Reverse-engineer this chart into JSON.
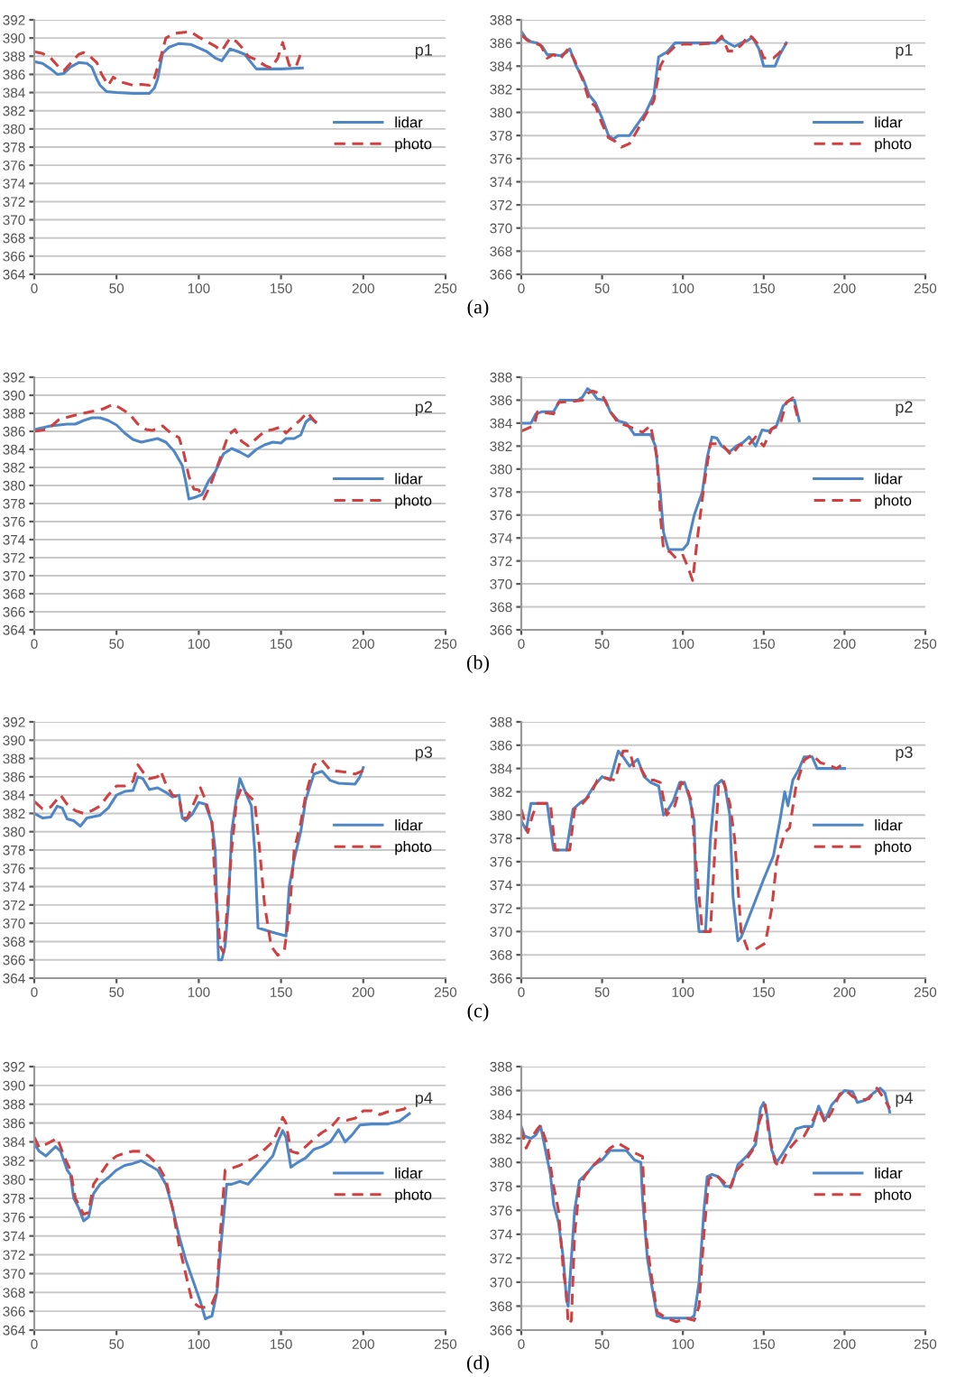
{
  "chart_data": [
    {
      "type": "line",
      "xlim": [
        0,
        250
      ],
      "xticks": [
        0,
        50,
        100,
        150,
        200,
        250
      ],
      "ylim": [
        364,
        392
      ],
      "yticks": [
        364,
        366,
        368,
        370,
        372,
        374,
        376,
        378,
        380,
        382,
        384,
        386,
        388,
        390,
        392
      ],
      "grid": "y",
      "legend": "right",
      "annotations": [
        "p1",
        "(a)"
      ],
      "series": [
        {
          "name": "lidar",
          "color": "#4f86c6",
          "line_style": "solid",
          "x": [
            0,
            5,
            10,
            14,
            18,
            22,
            27,
            32,
            35,
            38,
            40,
            44,
            50,
            60,
            70,
            73,
            75,
            78,
            82,
            88,
            95,
            100,
            105,
            110,
            114,
            119,
            124,
            128,
            131,
            135,
            140,
            150,
            163
          ],
          "values": [
            387.4,
            387.2,
            386.6,
            386,
            386.1,
            386.8,
            387.3,
            387.2,
            386.8,
            385.5,
            384.8,
            384.1,
            384,
            383.9,
            383.9,
            384.5,
            385.5,
            388.3,
            389,
            389.4,
            389.3,
            388.9,
            388.5,
            387.8,
            387.5,
            388.8,
            388.5,
            388.2,
            387.5,
            386.6,
            386.6,
            386.6,
            386.7
          ]
        },
        {
          "name": "photo",
          "color": "#d04040",
          "line_style": "dashed",
          "x": [
            0,
            5,
            10,
            15,
            18,
            22,
            27,
            30,
            35,
            38,
            41,
            45,
            48,
            52,
            56,
            60,
            65,
            70,
            73,
            77,
            80,
            85,
            90,
            95,
            100,
            105,
            110,
            114,
            119,
            123,
            127,
            130,
            135,
            140,
            144,
            148,
            151,
            155,
            159,
            162
          ],
          "values": [
            388.5,
            388.3,
            387.8,
            386.8,
            386.4,
            387.2,
            388.2,
            388.4,
            387.8,
            387.3,
            386,
            384.8,
            385.7,
            385.2,
            385,
            384.8,
            384.9,
            384.8,
            385.6,
            388,
            390,
            390.5,
            390.6,
            390.7,
            390.1,
            389.6,
            389.1,
            388.6,
            390,
            389.6,
            388.8,
            388,
            387.6,
            387,
            386.7,
            387.8,
            389.5,
            387,
            386.8,
            388.3
          ]
        }
      ]
    },
    {
      "type": "line",
      "xlim": [
        0,
        250
      ],
      "xticks": [
        0,
        50,
        100,
        150,
        200,
        250
      ],
      "ylim": [
        366,
        388
      ],
      "yticks": [
        366,
        368,
        370,
        372,
        374,
        376,
        378,
        380,
        382,
        384,
        386,
        388
      ],
      "grid": "y",
      "legend": "right",
      "annotations": [
        "p1"
      ],
      "series": [
        {
          "name": "lidar",
          "color": "#4f86c6",
          "line_style": "solid",
          "x": [
            0,
            3,
            6,
            10,
            13,
            16,
            20,
            24,
            28,
            30,
            34,
            38,
            42,
            46,
            50,
            54,
            57,
            60,
            67,
            72,
            77,
            82,
            85,
            90,
            95,
            100,
            110,
            120,
            124,
            128,
            132,
            136,
            140,
            143,
            147,
            150,
            157,
            160,
            164
          ],
          "values": [
            387,
            386.4,
            386.1,
            386,
            385.7,
            385,
            385,
            384.9,
            385.2,
            385.5,
            384,
            383,
            381.5,
            380.8,
            379.5,
            378,
            377.7,
            378,
            378,
            379,
            380,
            381.5,
            384.8,
            385.2,
            386,
            386,
            386,
            386,
            386.4,
            386,
            385.7,
            386,
            386.2,
            386.5,
            385.5,
            384,
            384,
            385,
            386
          ]
        },
        {
          "name": "photo",
          "color": "#d04040",
          "line_style": "dashed",
          "x": [
            0,
            4,
            8,
            12,
            16,
            20,
            24,
            29,
            33,
            38,
            42,
            46,
            50,
            54,
            58,
            62,
            67,
            72,
            77,
            82,
            86,
            90,
            95,
            100,
            110,
            120,
            124,
            128,
            132,
            136,
            141,
            144,
            147,
            150,
            156,
            160,
            164
          ],
          "values": [
            386.7,
            386.2,
            386,
            385.8,
            384.7,
            385,
            384.6,
            385.5,
            384.5,
            382.8,
            381,
            380.5,
            379,
            377.8,
            377.5,
            377,
            377.3,
            378.5,
            379.8,
            381,
            384,
            385,
            385.7,
            385.9,
            385.9,
            386,
            386.6,
            385.3,
            385.3,
            385.8,
            386.7,
            386.3,
            385.8,
            384.7,
            384.7,
            385.2,
            386
          ]
        }
      ]
    },
    {
      "type": "line",
      "xlim": [
        0,
        250
      ],
      "xticks": [
        0,
        50,
        100,
        150,
        200,
        250
      ],
      "ylim": [
        364,
        392
      ],
      "yticks": [
        364,
        366,
        368,
        370,
        372,
        374,
        376,
        378,
        380,
        382,
        384,
        386,
        388,
        390,
        392
      ],
      "grid": "y",
      "legend": "right",
      "annotations": [
        "p2",
        "(b)"
      ],
      "series": [
        {
          "name": "lidar",
          "color": "#4f86c6",
          "line_style": "solid",
          "x": [
            0,
            10,
            20,
            25,
            30,
            35,
            40,
            45,
            50,
            55,
            60,
            65,
            70,
            75,
            80,
            85,
            90,
            92,
            94,
            98,
            102,
            106,
            110,
            115,
            120,
            125,
            130,
            135,
            140,
            145,
            150,
            153,
            158,
            162,
            165,
            168,
            171
          ],
          "values": [
            386.2,
            386.6,
            386.8,
            386.8,
            387.2,
            387.5,
            387.5,
            387.2,
            386.7,
            385.8,
            385.1,
            384.8,
            385,
            385.2,
            384.8,
            383.8,
            382.2,
            380.5,
            378.5,
            378.7,
            379,
            380.5,
            381.5,
            383.5,
            384.1,
            383.7,
            383.2,
            384,
            384.5,
            384.8,
            384.7,
            385.2,
            385.2,
            385.6,
            387,
            387.5,
            387
          ]
        },
        {
          "name": "photo",
          "color": "#d04040",
          "line_style": "dashed",
          "x": [
            0,
            8,
            15,
            25,
            35,
            42,
            48,
            52,
            58,
            63,
            68,
            72,
            78,
            83,
            88,
            91,
            94,
            97,
            100,
            103,
            107,
            112,
            118,
            122,
            126,
            130,
            135,
            140,
            145,
            150,
            153,
            157,
            162,
            166,
            170,
            173
          ],
          "values": [
            386,
            386.2,
            387.3,
            387.8,
            388.2,
            388.5,
            389,
            388.6,
            387.9,
            386.8,
            386.2,
            386.1,
            386.6,
            385.8,
            385.3,
            383.5,
            381,
            379.6,
            379.5,
            378.5,
            380,
            382.5,
            385.6,
            386.2,
            384.9,
            384.4,
            385.2,
            386,
            386.2,
            386.5,
            385.8,
            386.5,
            387.3,
            388.1,
            387.2,
            386.8
          ]
        }
      ]
    },
    {
      "type": "line",
      "xlim": [
        0,
        250
      ],
      "xticks": [
        0,
        50,
        100,
        150,
        200,
        250
      ],
      "ylim": [
        366,
        388
      ],
      "yticks": [
        366,
        368,
        370,
        372,
        374,
        376,
        378,
        380,
        382,
        384,
        386,
        388
      ],
      "grid": "y",
      "legend": "right",
      "annotations": [
        "p2"
      ],
      "series": [
        {
          "name": "lidar",
          "color": "#4f86c6",
          "line_style": "solid",
          "x": [
            0,
            6,
            9,
            13,
            20,
            24,
            30,
            35,
            38,
            41,
            44,
            47,
            52,
            55,
            60,
            65,
            70,
            75,
            80,
            83,
            86,
            88,
            91,
            95,
            100,
            103,
            107,
            112,
            115,
            118,
            121,
            124,
            129,
            133,
            137,
            141,
            145,
            149,
            153,
            158,
            162,
            166,
            169,
            172
          ],
          "values": [
            384,
            384,
            384.8,
            385,
            385,
            386,
            386,
            386,
            386.3,
            387,
            386.7,
            386.1,
            386,
            385,
            384.2,
            384,
            383,
            383,
            383,
            382,
            378,
            374.5,
            373,
            373,
            373,
            373.5,
            376,
            378,
            381,
            382.8,
            382.7,
            382,
            381.5,
            382,
            382.3,
            382.8,
            382,
            383.4,
            383.3,
            383.8,
            385.5,
            386,
            386,
            384.2
          ]
        },
        {
          "name": "photo",
          "color": "#d04040",
          "line_style": "dashed",
          "x": [
            0,
            8,
            10,
            20,
            23,
            32,
            38,
            41,
            44,
            50,
            55,
            60,
            65,
            70,
            75,
            80,
            84,
            86,
            88,
            92,
            96,
            100,
            103,
            106,
            109,
            113,
            117,
            121,
            125,
            130,
            135,
            140,
            145,
            150,
            155,
            160,
            164,
            168,
            171
          ],
          "values": [
            383.3,
            383.8,
            385,
            384.8,
            385.8,
            385.9,
            386,
            386.6,
            386.8,
            386.5,
            385,
            384,
            383.8,
            383.5,
            383.2,
            383.8,
            381,
            376,
            373,
            372.8,
            372.2,
            372.5,
            371.5,
            370.3,
            374,
            378.5,
            382.2,
            382.2,
            382,
            381.2,
            382.1,
            382,
            382.8,
            382,
            383.5,
            383.8,
            385.8,
            386.2,
            384.5
          ]
        }
      ]
    },
    {
      "type": "line",
      "xlim": [
        0,
        250
      ],
      "xticks": [
        0,
        50,
        100,
        150,
        200,
        250
      ],
      "ylim": [
        364,
        392
      ],
      "yticks": [
        364,
        366,
        368,
        370,
        372,
        374,
        376,
        378,
        380,
        382,
        384,
        386,
        388,
        390,
        392
      ],
      "grid": "y",
      "legend": "right",
      "annotations": [
        "p3",
        "(c)"
      ],
      "series": [
        {
          "name": "lidar",
          "color": "#4f86c6",
          "line_style": "solid",
          "x": [
            0,
            5,
            10,
            14,
            17,
            20,
            24,
            28,
            32,
            40,
            45,
            50,
            55,
            60,
            63,
            66,
            70,
            75,
            80,
            84,
            88,
            90,
            92,
            96,
            100,
            104,
            108,
            110,
            112,
            114,
            116,
            118,
            120,
            123,
            125,
            128,
            132,
            134,
            136,
            145,
            153,
            155,
            158,
            162,
            165,
            170,
            175,
            180,
            185,
            195,
            198,
            200
          ],
          "values": [
            382,
            381.5,
            381.6,
            382.8,
            382.6,
            381.4,
            381.2,
            380.6,
            381.5,
            381.8,
            382.6,
            384,
            384.4,
            384.5,
            386,
            385.8,
            384.6,
            384.8,
            384.3,
            383.8,
            384,
            381.5,
            381.2,
            381.9,
            383.2,
            383,
            381,
            378,
            366,
            366,
            367.5,
            372,
            380,
            383.8,
            385.8,
            384.5,
            382.8,
            378,
            369.5,
            369,
            368.6,
            374,
            377,
            380,
            383.5,
            386.3,
            386.6,
            385.6,
            385.3,
            385.2,
            386,
            387
          ]
        },
        {
          "name": "photo",
          "color": "#d04040",
          "line_style": "dashed",
          "x": [
            0,
            5,
            10,
            16,
            20,
            25,
            30,
            35,
            40,
            45,
            50,
            55,
            60,
            63,
            67,
            70,
            75,
            77,
            80,
            84,
            88,
            90,
            93,
            98,
            101,
            104,
            108,
            110,
            113,
            115,
            117,
            120,
            123,
            126,
            130,
            134,
            137,
            140,
            144,
            148,
            152,
            155,
            158,
            162,
            165,
            170,
            175,
            180,
            185,
            190,
            195,
            200
          ],
          "values": [
            383.3,
            382.5,
            382.7,
            384,
            383,
            382.3,
            382,
            382.3,
            382.8,
            384,
            385,
            385,
            385.5,
            387.3,
            386.3,
            385.8,
            386,
            386.6,
            385.2,
            384,
            383.8,
            381.5,
            381.5,
            383.5,
            384.8,
            383.5,
            381,
            374,
            367.5,
            366.8,
            371,
            378,
            383.5,
            384.8,
            384,
            383.3,
            378,
            372,
            367.5,
            366.5,
            367,
            371,
            378,
            381,
            384,
            387.3,
            387.8,
            386.7,
            386.6,
            386.5,
            386.3,
            386.7
          ]
        }
      ]
    },
    {
      "type": "line",
      "xlim": [
        0,
        250
      ],
      "xticks": [
        0,
        50,
        100,
        150,
        200,
        250
      ],
      "ylim": [
        366,
        388
      ],
      "yticks": [
        366,
        368,
        370,
        372,
        374,
        376,
        378,
        380,
        382,
        384,
        386,
        388
      ],
      "grid": "y",
      "legend": "right",
      "annotations": [
        "p3"
      ],
      "series": [
        {
          "name": "lidar",
          "color": "#4f86c6",
          "line_style": "solid",
          "x": [
            0,
            3,
            6,
            10,
            16,
            20,
            25,
            28,
            32,
            36,
            40,
            45,
            50,
            55,
            60,
            63,
            67,
            72,
            76,
            80,
            85,
            88,
            91,
            94,
            98,
            101,
            104,
            107,
            108,
            110,
            114,
            117,
            120,
            124,
            126,
            129,
            131,
            134,
            136,
            143,
            150,
            156,
            160,
            163,
            165,
            168,
            172,
            175,
            180,
            183,
            190,
            200
          ],
          "values": [
            379.5,
            378.7,
            381,
            381,
            381,
            377,
            377,
            377,
            380.5,
            381,
            381.4,
            382.5,
            383.3,
            383,
            385.5,
            385,
            384.2,
            384.8,
            383.3,
            382.8,
            382.5,
            380,
            380.5,
            381.2,
            382.8,
            382.8,
            381.5,
            379.5,
            373,
            370,
            370,
            378,
            382.5,
            383,
            382.5,
            380,
            373,
            369.2,
            369.5,
            372,
            374.5,
            376.5,
            379.5,
            382,
            380.8,
            383,
            384,
            385,
            385,
            384,
            384,
            384
          ]
        },
        {
          "name": "photo",
          "color": "#d04040",
          "line_style": "dashed",
          "x": [
            0,
            4,
            7,
            10,
            18,
            21,
            30,
            33,
            38,
            43,
            47,
            52,
            58,
            63,
            67,
            70,
            74,
            78,
            82,
            86,
            90,
            95,
            99,
            102,
            105,
            108,
            112,
            117,
            122,
            125,
            129,
            132,
            136,
            140,
            145,
            151,
            155,
            158,
            163,
            166,
            170,
            175,
            180,
            185,
            190,
            195,
            200
          ],
          "values": [
            380.5,
            378.5,
            380,
            381,
            381,
            377,
            377,
            380.5,
            381,
            381.8,
            383,
            383.2,
            383,
            385.5,
            385.5,
            384,
            384,
            383,
            383,
            382.8,
            380,
            380.8,
            382.8,
            382.5,
            381.3,
            376,
            370,
            370,
            382.5,
            383,
            381,
            378,
            370,
            368.5,
            368.5,
            369,
            372,
            376,
            378.5,
            378.9,
            382.5,
            384.7,
            385.2,
            384.5,
            384.3,
            384,
            384.5
          ]
        }
      ]
    },
    {
      "type": "line",
      "xlim": [
        0,
        250
      ],
      "xticks": [
        0,
        50,
        100,
        150,
        200,
        250
      ],
      "ylim": [
        364,
        392
      ],
      "yticks": [
        364,
        366,
        368,
        370,
        372,
        374,
        376,
        378,
        380,
        382,
        384,
        386,
        388,
        390,
        392
      ],
      "grid": "y",
      "legend": "right",
      "annotations": [
        "p4",
        "(d)"
      ],
      "series": [
        {
          "name": "lidar",
          "color": "#4f86c6",
          "line_style": "solid",
          "x": [
            0,
            3,
            7,
            10,
            13,
            16,
            20,
            22,
            24,
            27,
            30,
            33,
            36,
            40,
            45,
            50,
            55,
            60,
            65,
            70,
            75,
            80,
            84,
            88,
            92,
            97,
            101,
            104,
            108,
            111,
            114,
            117,
            120,
            125,
            130,
            135,
            140,
            145,
            148,
            151,
            153,
            156,
            160,
            165,
            170,
            175,
            180,
            185,
            189,
            193,
            198,
            205,
            215,
            222,
            228
          ],
          "values": [
            383.8,
            383,
            382.5,
            383,
            383.5,
            383,
            381,
            380.5,
            378,
            377,
            375.6,
            376,
            378.5,
            379.5,
            380.2,
            381,
            381.5,
            381.7,
            382,
            381.5,
            381,
            379.5,
            377,
            374,
            371.5,
            369,
            367,
            365.2,
            365.5,
            368,
            374,
            379.5,
            379.5,
            379.8,
            379.5,
            380.5,
            381.5,
            382.5,
            384,
            385.2,
            384.5,
            381.3,
            381.8,
            382.3,
            383.2,
            383.5,
            384,
            385.3,
            384,
            384.7,
            385.8,
            385.9,
            385.9,
            386.2,
            387
          ]
        },
        {
          "name": "photo",
          "color": "#d04040",
          "line_style": "dashed",
          "x": [
            0,
            3,
            10,
            14,
            18,
            22,
            25,
            30,
            33,
            36,
            40,
            45,
            50,
            55,
            60,
            65,
            70,
            75,
            80,
            84,
            88,
            92,
            96,
            100,
            104,
            108,
            111,
            113,
            116,
            120,
            125,
            130,
            135,
            140,
            145,
            149,
            151,
            153,
            156,
            160,
            165,
            170,
            175,
            180,
            185,
            190,
            195,
            200,
            205,
            210,
            215,
            220,
            225,
            228
          ],
          "values": [
            384.5,
            383.4,
            384,
            384.4,
            382.5,
            381,
            378,
            376.3,
            376.5,
            379.5,
            380.5,
            381.8,
            382.5,
            382.8,
            383,
            383,
            382.4,
            381.6,
            380,
            377,
            373,
            370,
            367,
            366.5,
            366.4,
            366.8,
            368,
            374,
            381,
            381.2,
            381.5,
            382,
            382.5,
            383.2,
            384,
            385.5,
            386.6,
            386,
            383,
            382.8,
            383.5,
            384.3,
            385,
            385.5,
            386.5,
            386.3,
            386.5,
            387.3,
            387.3,
            386.9,
            387.2,
            387.3,
            387.5,
            388.2
          ]
        }
      ]
    },
    {
      "type": "line",
      "xlim": [
        0,
        250
      ],
      "xticks": [
        0,
        50,
        100,
        150,
        200,
        250
      ],
      "ylim": [
        366,
        388
      ],
      "yticks": [
        366,
        368,
        370,
        372,
        374,
        376,
        378,
        380,
        382,
        384,
        386,
        388
      ],
      "grid": "y",
      "legend": "right",
      "annotations": [
        "p4"
      ],
      "series": [
        {
          "name": "lidar",
          "color": "#4f86c6",
          "line_style": "solid",
          "x": [
            0,
            2,
            6,
            9,
            12,
            15,
            18,
            20,
            23,
            26,
            28,
            29,
            31,
            33,
            36,
            40,
            45,
            50,
            55,
            65,
            70,
            74,
            75,
            78,
            81,
            84,
            88,
            95,
            105,
            107,
            110,
            113,
            115,
            118,
            122,
            126,
            130,
            134,
            140,
            145,
            148,
            150,
            152,
            155,
            158,
            162,
            166,
            170,
            175,
            180,
            184,
            188,
            192,
            196,
            200,
            205,
            208,
            213,
            218,
            222,
            225,
            228
          ],
          "values": [
            383,
            382.2,
            382,
            382.3,
            383,
            381,
            379,
            376.5,
            375,
            372,
            368.5,
            368,
            372,
            376,
            378.5,
            379,
            379.8,
            380.2,
            381,
            381,
            380.2,
            380,
            377,
            372,
            369.5,
            367.2,
            367,
            367,
            367,
            367.2,
            370,
            376,
            378.8,
            379,
            378.8,
            378,
            378,
            379.8,
            380.6,
            381.5,
            384.5,
            385,
            384,
            381,
            380,
            380.8,
            381.7,
            382.8,
            383,
            383,
            384.7,
            383.5,
            384.8,
            385.4,
            386,
            385.9,
            385,
            385.2,
            385.8,
            386.2,
            385.8,
            384.2
          ]
        },
        {
          "name": "photo",
          "color": "#d04040",
          "line_style": "dashed",
          "x": [
            0,
            3,
            6,
            10,
            12,
            16,
            20,
            23,
            26,
            28,
            29,
            31,
            33,
            36,
            40,
            45,
            50,
            55,
            60,
            65,
            70,
            75,
            77,
            80,
            84,
            90,
            96,
            102,
            107,
            110,
            113,
            116,
            120,
            125,
            129,
            133,
            138,
            143,
            147,
            151,
            153,
            157,
            160,
            165,
            170,
            175,
            180,
            184,
            188,
            192,
            197,
            201,
            205,
            210,
            215,
            220,
            225,
            228
          ],
          "values": [
            382.8,
            381.2,
            382,
            382.8,
            383.1,
            381.5,
            378,
            376,
            371,
            369,
            366.5,
            366.8,
            374,
            378,
            379,
            379.8,
            380.5,
            381.2,
            381.6,
            381.2,
            380.8,
            380.5,
            374,
            371,
            367.5,
            367,
            366.7,
            367,
            366.8,
            368,
            374,
            378.6,
            379,
            378.4,
            377.8,
            379.3,
            380,
            381,
            383.3,
            384.8,
            382.5,
            380,
            379.6,
            381,
            381.8,
            382.2,
            383.4,
            384.5,
            383.3,
            384.2,
            385.7,
            386,
            385.5,
            385.2,
            385.3,
            386.2,
            385.2,
            384.5
          ]
        }
      ]
    }
  ]
}
